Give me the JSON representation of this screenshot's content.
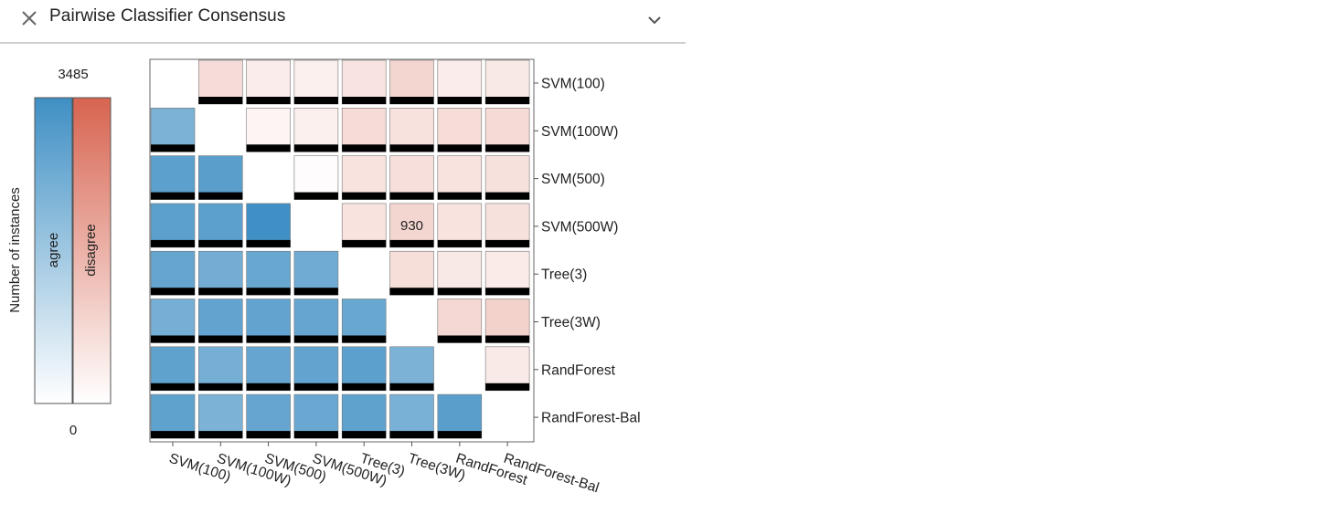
{
  "header": {
    "title": "Pairwise Classifier Consensus",
    "close_icon": "close-icon",
    "collapse_icon": "chevron-down-icon"
  },
  "colors": {
    "agree": "#3f8fc4",
    "disagree": "#d76450",
    "bar": "#000000",
    "header_rule": "#cfcfcf"
  },
  "chart_data": {
    "type": "heatmap",
    "title": "",
    "row_labels": [
      "SVM(100)",
      "SVM(100W)",
      "SVM(500)",
      "SVM(500W)",
      "Tree(3)",
      "Tree(3W)",
      "RandForest",
      "RandForest-Bal"
    ],
    "col_labels": [
      "SVM(100)",
      "SVM(100W)",
      "SVM(500)",
      "SVM(500W)",
      "Tree(3)",
      "Tree(3W)",
      "RandForest",
      "RandForest-Bal"
    ],
    "value_range": [
      0,
      3485
    ],
    "lower_triangle": "agree",
    "upper_triangle": "disagree",
    "legend": {
      "ylabel": "Number of instances",
      "max_label": "3485",
      "min_label": "0",
      "agree_label": "agree",
      "disagree_label": "disagree"
    },
    "annotations": [
      {
        "row": 3,
        "col": 5,
        "text": "930"
      }
    ],
    "matrix": [
      [
        null,
        780,
        420,
        330,
        620,
        930,
        420,
        500
      ],
      [
        2400,
        null,
        220,
        330,
        800,
        650,
        770,
        830
      ],
      [
        2950,
        3000,
        null,
        60,
        630,
        700,
        630,
        680
      ],
      [
        2950,
        2950,
        3450,
        null,
        630,
        930,
        640,
        680
      ],
      [
        2800,
        2550,
        2750,
        2600,
        null,
        750,
        490,
        460
      ],
      [
        2500,
        2850,
        2850,
        2800,
        2750,
        null,
        880,
        1020
      ],
      [
        2900,
        2500,
        2800,
        2850,
        2950,
        2400,
        null,
        470
      ],
      [
        2900,
        2400,
        2800,
        2700,
        2900,
        2450,
        3000,
        null
      ]
    ]
  }
}
